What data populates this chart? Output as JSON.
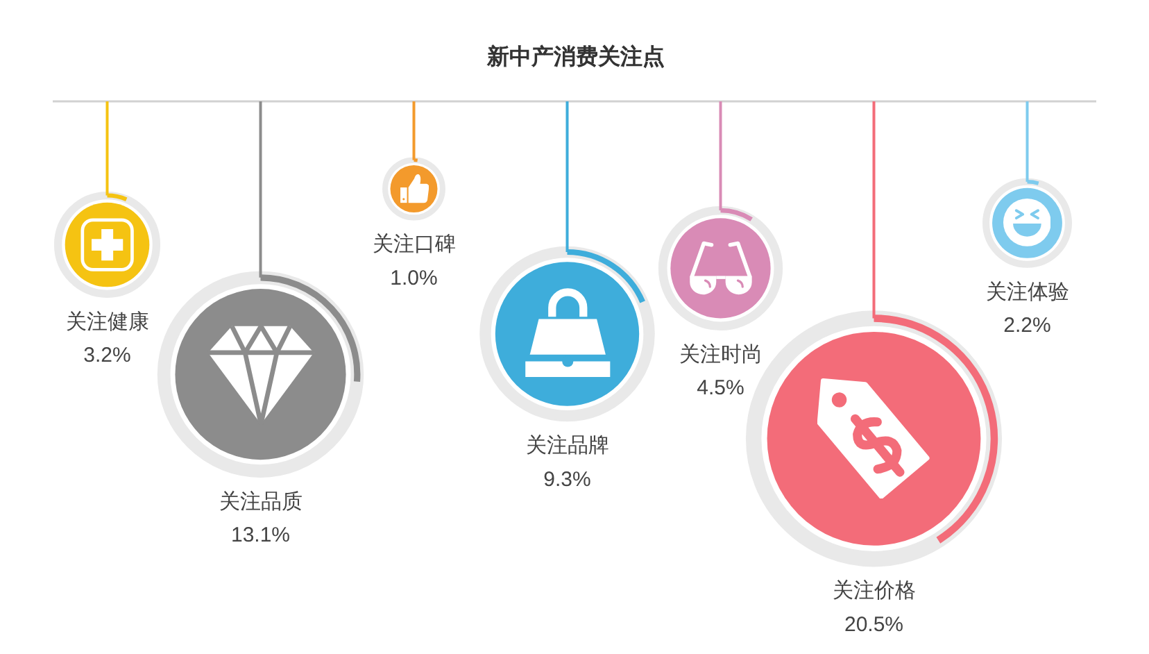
{
  "chart_data": {
    "type": "other",
    "title": "新中产消费关注点",
    "categories": [
      "关注健康",
      "关注品质",
      "关注口碑",
      "关注品牌",
      "关注时尚",
      "关注价格",
      "关注体验"
    ],
    "values": [
      3.2,
      13.1,
      1.0,
      9.3,
      4.5,
      20.5,
      2.2
    ],
    "value_labels": [
      "3.2%",
      "13.1%",
      "1.0%",
      "9.3%",
      "4.5%",
      "20.5%",
      "2.2%"
    ],
    "colors": [
      "#f5c312",
      "#8c8c8c",
      "#f39a2c",
      "#3eaddb",
      "#d98bb6",
      "#f36c79",
      "#7ecbee"
    ]
  }
}
